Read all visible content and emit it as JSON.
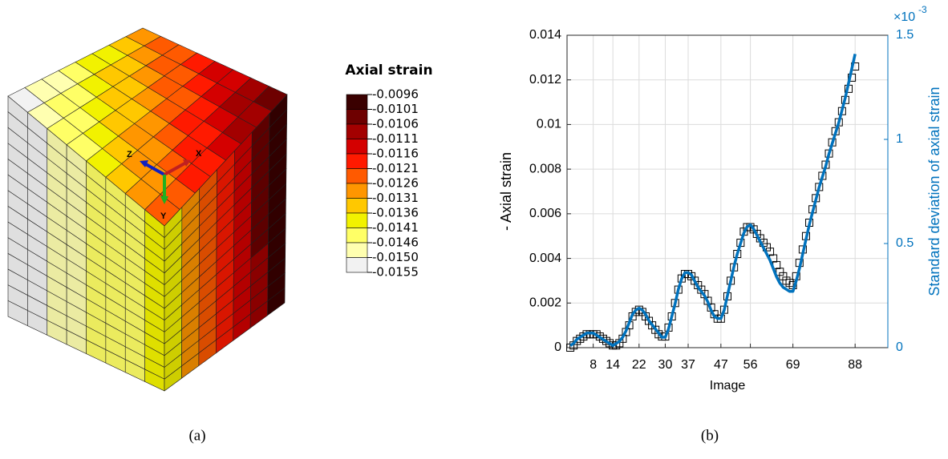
{
  "figure_a": {
    "legend_title": "Axial strain",
    "legend_labels": [
      "-0.0096",
      "-0.0101",
      "-0.0106",
      "-0.0111",
      "-0.0116",
      "-0.0121",
      "-0.0126",
      "-0.0131",
      "-0.0136",
      "-0.0141",
      "-0.0146",
      "-0.0150",
      "-0.0155"
    ],
    "legend_colors": [
      "#3a0000",
      "#6e0000",
      "#a30000",
      "#d40000",
      "#ff1a00",
      "#ff5a00",
      "#ff9600",
      "#ffc800",
      "#f2f200",
      "#ffff66",
      "#ffffb0",
      "#f2f2f2"
    ],
    "triad": {
      "z": "Z",
      "x": "X",
      "y": "Y"
    }
  },
  "captions": {
    "a": "(a)",
    "b": "(b)"
  },
  "chart_data": {
    "type": "line",
    "xlabel": "Image",
    "ylabel": "- Axial strain",
    "y2label": "Standard deviation of axial strain",
    "y2_scale": {
      "base": "×10",
      "exponent": "-3"
    },
    "grid": true,
    "xlim": [
      0,
      98
    ],
    "xticks": [
      8,
      14,
      22,
      30,
      37,
      47,
      56,
      69,
      88
    ],
    "ylim": [
      0,
      0.014
    ],
    "yticks": [
      0,
      0.002,
      0.004,
      0.006,
      0.008,
      0.01,
      0.012,
      0.014
    ],
    "y2lim": [
      0,
      1.5
    ],
    "y2ticks": [
      0,
      0.5,
      1,
      1.5
    ],
    "x": [
      1,
      2,
      3,
      4,
      5,
      6,
      7,
      8,
      9,
      10,
      11,
      12,
      13,
      14,
      15,
      16,
      17,
      18,
      19,
      20,
      21,
      22,
      23,
      24,
      25,
      26,
      27,
      28,
      29,
      30,
      31,
      32,
      33,
      34,
      35,
      36,
      37,
      38,
      39,
      40,
      41,
      42,
      43,
      44,
      45,
      46,
      47,
      48,
      49,
      50,
      51,
      52,
      53,
      54,
      55,
      56,
      57,
      58,
      59,
      60,
      61,
      62,
      63,
      64,
      65,
      66,
      67,
      68,
      69,
      70,
      71,
      72,
      73,
      74,
      75,
      76,
      77,
      78,
      79,
      80,
      81,
      82,
      83,
      84,
      85,
      86,
      87,
      88
    ],
    "series": [
      {
        "type": "scatter",
        "marker": "square",
        "color": "#000000",
        "axis": "y",
        "values": [
          0,
          0.0001,
          0.0003,
          0.0004,
          0.0005,
          0.0006,
          0.0006,
          0.0006,
          0.0006,
          0.0005,
          0.0004,
          0.0003,
          0.0002,
          0.0001,
          0.0001,
          0.0002,
          0.0004,
          0.0007,
          0.001,
          0.0014,
          0.0016,
          0.0017,
          0.0016,
          0.0014,
          0.0012,
          0.001,
          0.0008,
          0.0006,
          0.0005,
          0.0005,
          0.0009,
          0.0014,
          0.002,
          0.0026,
          0.0031,
          0.0033,
          0.0033,
          0.0032,
          0.003,
          0.0028,
          0.0026,
          0.0024,
          0.0021,
          0.0018,
          0.0015,
          0.0013,
          0.0013,
          0.0017,
          0.0023,
          0.003,
          0.0036,
          0.0042,
          0.0047,
          0.0052,
          0.0054,
          0.0054,
          0.0053,
          0.0051,
          0.0049,
          0.0047,
          0.0045,
          0.0043,
          0.004,
          0.0037,
          0.0034,
          0.0032,
          0.003,
          0.0029,
          0.0028,
          0.0032,
          0.0038,
          0.0044,
          0.005,
          0.0056,
          0.0062,
          0.0067,
          0.0072,
          0.0077,
          0.0082,
          0.0087,
          0.0092,
          0.0097,
          0.0101,
          0.0106,
          0.0111,
          0.0116,
          0.0121,
          0.0126
        ]
      },
      {
        "type": "line",
        "color": "#0072bd",
        "axis": "y2",
        "values": [
          0.01,
          0.02,
          0.04,
          0.05,
          0.06,
          0.07,
          0.07,
          0.07,
          0.06,
          0.05,
          0.04,
          0.03,
          0.02,
          0.01,
          0.02,
          0.03,
          0.05,
          0.08,
          0.12,
          0.16,
          0.18,
          0.19,
          0.18,
          0.16,
          0.13,
          0.11,
          0.09,
          0.07,
          0.05,
          0.05,
          0.09,
          0.15,
          0.21,
          0.28,
          0.33,
          0.36,
          0.36,
          0.35,
          0.32,
          0.29,
          0.27,
          0.25,
          0.22,
          0.18,
          0.15,
          0.14,
          0.14,
          0.18,
          0.25,
          0.32,
          0.39,
          0.45,
          0.5,
          0.55,
          0.58,
          0.59,
          0.57,
          0.54,
          0.51,
          0.48,
          0.45,
          0.42,
          0.38,
          0.34,
          0.31,
          0.29,
          0.28,
          0.27,
          0.27,
          0.32,
          0.38,
          0.45,
          0.52,
          0.59,
          0.65,
          0.71,
          0.77,
          0.82,
          0.87,
          0.93,
          0.98,
          1.03,
          1.08,
          1.14,
          1.2,
          1.27,
          1.34,
          1.41
        ]
      }
    ]
  }
}
